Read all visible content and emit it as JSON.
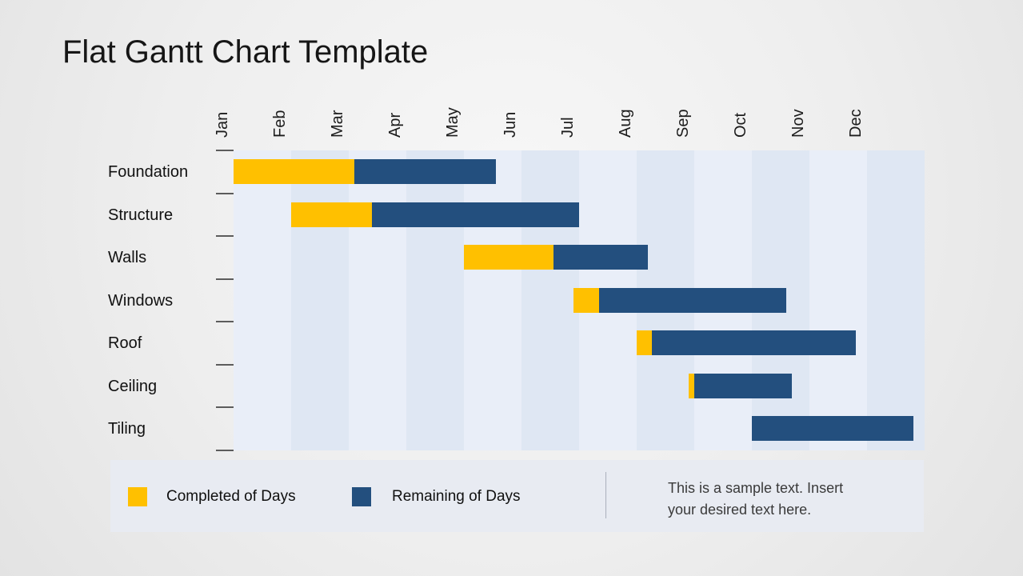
{
  "title": "Flat Gantt Chart Template",
  "colors": {
    "completed": "#FFC000",
    "remaining": "#234F7E",
    "plot_stripe_light": "#e9eef8",
    "plot_stripe_dark": "#dfe7f3",
    "legend_background": "#e8ebf2"
  },
  "chart_data": {
    "type": "bar",
    "subtype": "gantt",
    "title": "Flat Gantt Chart Template",
    "x_axis": {
      "unit": "months",
      "labels": [
        "Jan",
        "Feb",
        "Mar",
        "Apr",
        "May",
        "Jun",
        "Jul",
        "Aug",
        "Sep",
        "Oct",
        "Nov",
        "Dec"
      ],
      "range": [
        0,
        12
      ],
      "grid": "alternating column stripes"
    },
    "series_meaning": {
      "completed": "Completed of Days (gold segment from start_month to completed_until)",
      "remaining": "Remaining of Days (navy segment from completed_until to end_month)"
    },
    "tasks": [
      {
        "name": "Foundation",
        "start_month": 0.0,
        "completed_until": 2.1,
        "end_month": 4.55
      },
      {
        "name": "Structure",
        "start_month": 1.0,
        "completed_until": 2.4,
        "end_month": 6.0
      },
      {
        "name": "Walls",
        "start_month": 4.0,
        "completed_until": 5.55,
        "end_month": 7.2
      },
      {
        "name": "Windows",
        "start_month": 5.9,
        "completed_until": 6.35,
        "end_month": 9.6
      },
      {
        "name": "Roof",
        "start_month": 7.0,
        "completed_until": 7.27,
        "end_month": 10.8
      },
      {
        "name": "Ceiling",
        "start_month": 7.9,
        "completed_until": 8.0,
        "end_month": 9.7
      },
      {
        "name": "Tiling",
        "start_month": 9.0,
        "completed_until": 9.0,
        "end_month": 11.8
      }
    ],
    "legend_position": "bottom"
  },
  "legend": {
    "completed_label": "Completed of Days",
    "remaining_label": "Remaining of Days"
  },
  "sample_text": {
    "line1": "This is a sample text. Insert",
    "line2": "your desired text here."
  }
}
